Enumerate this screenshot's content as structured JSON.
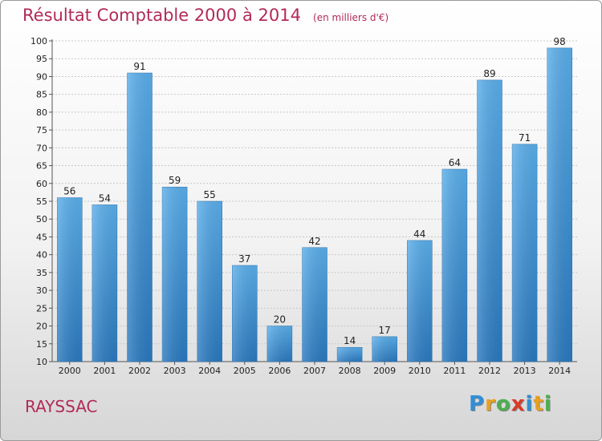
{
  "chart_data": {
    "type": "bar",
    "title": "Résultat Comptable 2000 à 2014",
    "unit": "(en milliers d'€)",
    "categories": [
      "2000",
      "2001",
      "2002",
      "2003",
      "2004",
      "2005",
      "2006",
      "2007",
      "2008",
      "2009",
      "2010",
      "2011",
      "2012",
      "2013",
      "2014"
    ],
    "values": [
      56,
      54,
      91,
      59,
      55,
      37,
      20,
      42,
      14,
      17,
      44,
      64,
      89,
      71,
      98
    ],
    "ylim": [
      10,
      100
    ],
    "yticks": [
      10,
      15,
      20,
      25,
      30,
      35,
      40,
      45,
      50,
      55,
      60,
      65,
      70,
      75,
      80,
      85,
      90,
      95,
      100
    ],
    "grid": true,
    "bar_color": "#4a9fe0"
  },
  "commune": "RAYSSAC",
  "logo": {
    "text": "Proxiti",
    "letters": [
      "P",
      "r",
      "o",
      "x",
      "i",
      "t",
      "i"
    ],
    "colors": [
      "#2f8fd8",
      "#e8a020",
      "#4caf50",
      "#d93a2a",
      "#2f8fd8",
      "#e8a020",
      "#4caf50"
    ]
  }
}
